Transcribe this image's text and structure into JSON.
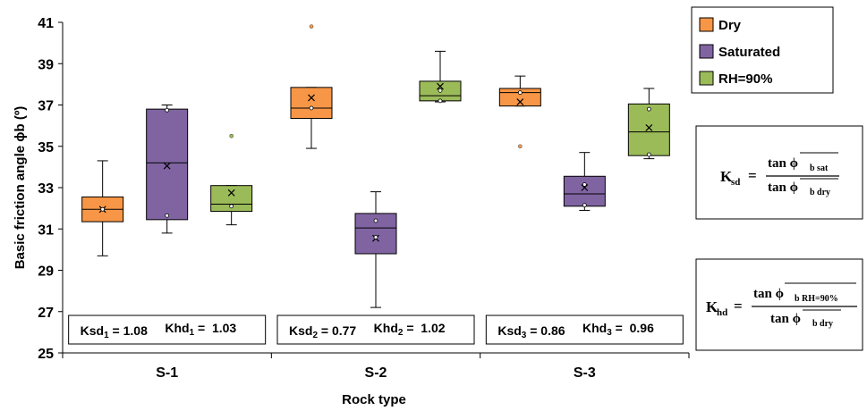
{
  "chart_data": {
    "type": "box",
    "ylabel": "Basic friction angle  ϕb (º)",
    "xlabel": "Rock type",
    "ylim": [
      25,
      41
    ],
    "yticks": [
      25,
      27,
      29,
      31,
      33,
      35,
      37,
      39,
      41
    ],
    "categories": [
      "S-1",
      "S-2",
      "S-3"
    ],
    "series": [
      {
        "name": "Dry",
        "color": "#f79646",
        "boxes": [
          {
            "min": 29.7,
            "q1": 31.35,
            "median": 31.95,
            "q3": 32.55,
            "max": 34.3,
            "mean": 31.95,
            "points": [
              31.95
            ],
            "outliers": []
          },
          {
            "min": 34.9,
            "q1": 36.35,
            "median": 36.85,
            "q3": 37.85,
            "max": 37.85,
            "mean": 37.35,
            "points": [
              36.85
            ],
            "outliers": [
              40.8
            ]
          },
          {
            "min": 36.95,
            "q1": 36.95,
            "median": 37.6,
            "q3": 37.8,
            "max": 38.4,
            "mean": 37.15,
            "points": [
              37.6
            ],
            "outliers": [
              35.0
            ]
          }
        ]
      },
      {
        "name": "Saturated",
        "color": "#8064a2",
        "boxes": [
          {
            "min": 30.8,
            "q1": 31.45,
            "median": 34.2,
            "q3": 36.8,
            "max": 37.0,
            "mean": 34.05,
            "points": [
              31.65,
              36.75
            ],
            "outliers": []
          },
          {
            "min": 27.2,
            "q1": 29.8,
            "median": 31.05,
            "q3": 31.75,
            "max": 32.8,
            "mean": 30.55,
            "points": [
              30.6,
              31.4
            ],
            "outliers": []
          },
          {
            "min": 31.9,
            "q1": 32.1,
            "median": 32.7,
            "q3": 33.55,
            "max": 34.7,
            "mean": 33.0,
            "points": [
              32.15,
              33.15
            ],
            "outliers": []
          }
        ]
      },
      {
        "name": "RH=90%",
        "color": "#9bbb59",
        "boxes": [
          {
            "min": 31.2,
            "q1": 31.85,
            "median": 32.2,
            "q3": 33.1,
            "max": 33.1,
            "mean": 32.75,
            "points": [
              32.1
            ],
            "outliers": [
              35.5
            ]
          },
          {
            "min": 37.15,
            "q1": 37.2,
            "median": 37.45,
            "q3": 38.15,
            "max": 39.6,
            "mean": 37.9,
            "points": [
              37.7,
              37.2
            ],
            "outliers": []
          },
          {
            "min": 34.4,
            "q1": 34.55,
            "median": 35.7,
            "q3": 37.05,
            "max": 37.8,
            "mean": 35.9,
            "points": [
              36.8,
              34.6
            ],
            "outliers": []
          }
        ]
      }
    ],
    "legend_position": "top-right",
    "coefficients": [
      {
        "ksd_label": "Ksd",
        "ksd_sub": "1",
        "ksd_value": "= 1.08",
        "khd_label": "Khd",
        "khd_sub": "1",
        "khd_value": "=  1.03"
      },
      {
        "ksd_label": "Ksd",
        "ksd_sub": "2",
        "ksd_value": "= 0.77",
        "khd_label": "Khd",
        "khd_sub": "2",
        "khd_value": "=  1.02"
      },
      {
        "ksd_label": "Ksd",
        "ksd_sub": "3",
        "ksd_value": "= 0.86",
        "khd_label": "Khd",
        "khd_sub": "3",
        "khd_value": "=  0.96"
      }
    ],
    "formulas": [
      {
        "lhs": "K",
        "lhs_sub": "sd",
        "eq": "=",
        "num": "tan ϕ",
        "num_sub": "b sat",
        "den": "tan ϕ",
        "den_sub": "b dry"
      },
      {
        "lhs": "K",
        "lhs_sub": "hd",
        "eq": "=",
        "num": "tan ϕ",
        "num_sub": "b RH=90%",
        "den": "tan ϕ",
        "den_sub": "b dry"
      }
    ]
  }
}
